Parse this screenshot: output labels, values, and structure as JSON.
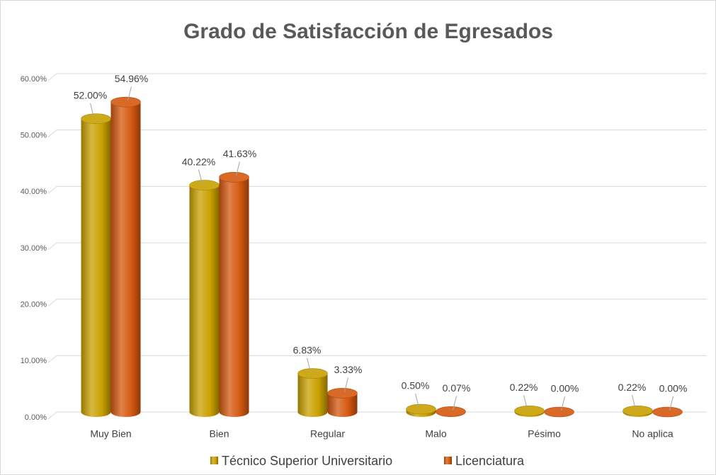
{
  "chart_data": {
    "type": "bar3d",
    "title": "Grado de Satisfacción de Egresados",
    "categories": [
      "Muy Bien",
      "Bien",
      "Regular",
      "Malo",
      "Pésimo",
      "No aplica"
    ],
    "series": [
      {
        "name": "Técnico Superior Universitario",
        "color": "#c9a000",
        "values": [
          52.0,
          40.22,
          6.83,
          0.5,
          0.22,
          0.22
        ],
        "value_labels": [
          "52.00%",
          "40.22%",
          "6.83%",
          "0.50%",
          "0.22%",
          "0.22%"
        ]
      },
      {
        "name": "Licenciatura",
        "color": "#d4580f",
        "values": [
          54.96,
          41.63,
          3.33,
          0.07,
          0.0,
          0.0
        ],
        "value_labels": [
          "54.96%",
          "41.63%",
          "3.33%",
          "0.07%",
          "0.00%",
          "0.00%"
        ]
      }
    ],
    "ylim": [
      0,
      60
    ],
    "yticks": [
      {
        "value": 0,
        "label": "0.00%"
      },
      {
        "value": 10,
        "label": "10.00%"
      },
      {
        "value": 20,
        "label": "20.00%"
      },
      {
        "value": 30,
        "label": "30.00%"
      },
      {
        "value": 40,
        "label": "40.00%"
      },
      {
        "value": 50,
        "label": "50.00%"
      },
      {
        "value": 60,
        "label": "60.00%"
      }
    ],
    "grid": true,
    "legend": "bottom"
  }
}
